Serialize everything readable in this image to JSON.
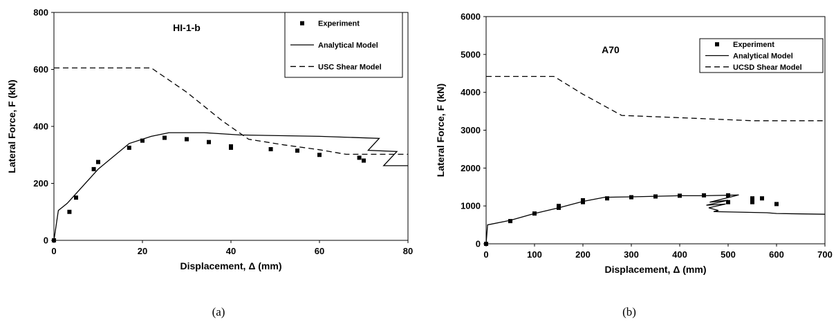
{
  "chart_data": [
    {
      "type": "line",
      "panel_caption": "(a)",
      "title": "HI-1-b",
      "xlabel": "Displacement, Δ (mm)",
      "ylabel": "Lateral Force, F (kN)",
      "xlim": [
        0,
        80
      ],
      "ylim": [
        0,
        800
      ],
      "xticks": [
        "0",
        "20",
        "40",
        "60",
        "80"
      ],
      "yticks": [
        "0",
        "200",
        "400",
        "600",
        "800"
      ],
      "grid": false,
      "legend_position": "top-right",
      "series": [
        {
          "name": "Experiment",
          "style": "markers",
          "points": [
            [
              0,
              0
            ],
            [
              3.5,
              100
            ],
            [
              5,
              150
            ],
            [
              9,
              250
            ],
            [
              10,
              275
            ],
            [
              17,
              325
            ],
            [
              20,
              350
            ],
            [
              25,
              360
            ],
            [
              30,
              355
            ],
            [
              35,
              345
            ],
            [
              40,
              330
            ],
            [
              40,
              325
            ],
            [
              49,
              320
            ],
            [
              55,
              315
            ],
            [
              60,
              300
            ],
            [
              69,
              290
            ],
            [
              70,
              280
            ]
          ]
        },
        {
          "name": "Analytical Model",
          "style": "solid",
          "points": [
            [
              0,
              0
            ],
            [
              1,
              105
            ],
            [
              3,
              130
            ],
            [
              10,
              250
            ],
            [
              17,
              340
            ],
            [
              22,
              365
            ],
            [
              26,
              378
            ],
            [
              34,
              378
            ],
            [
              42,
              370
            ],
            [
              60,
              365
            ],
            [
              73.5,
              358
            ],
            [
              71,
              316
            ],
            [
              77.5,
              312
            ],
            [
              74.5,
              262
            ],
            [
              80,
              262
            ]
          ]
        },
        {
          "name": "USC Shear Model",
          "style": "dashed",
          "points": [
            [
              0,
              605
            ],
            [
              22,
              605
            ],
            [
              30,
              520
            ],
            [
              38,
              420
            ],
            [
              44,
              355
            ],
            [
              52,
              335
            ],
            [
              60,
              318
            ],
            [
              66,
              302
            ],
            [
              80,
              302
            ]
          ]
        }
      ]
    },
    {
      "type": "line",
      "panel_caption": "(b)",
      "title": "A70",
      "xlabel": "Displacement, Δ (mm)",
      "ylabel": "Lateral Force, F (kN)",
      "xlim": [
        0,
        700
      ],
      "ylim": [
        0,
        6000
      ],
      "xticks": [
        "0",
        "100",
        "200",
        "300",
        "400",
        "500",
        "600",
        "700"
      ],
      "yticks": [
        "0",
        "1000",
        "2000",
        "3000",
        "4000",
        "5000",
        "6000"
      ],
      "grid": false,
      "legend_position": "top-right",
      "series": [
        {
          "name": "Experiment",
          "style": "markers",
          "points": [
            [
              0,
              0
            ],
            [
              50,
              600
            ],
            [
              100,
              800
            ],
            [
              150,
              950
            ],
            [
              150,
              1000
            ],
            [
              200,
              1100
            ],
            [
              200,
              1150
            ],
            [
              250,
              1200
            ],
            [
              300,
              1230
            ],
            [
              350,
              1250
            ],
            [
              400,
              1270
            ],
            [
              450,
              1280
            ],
            [
              500,
              1280
            ],
            [
              500,
              1100
            ],
            [
              550,
              1200
            ],
            [
              550,
              1100
            ],
            [
              570,
              1200
            ],
            [
              600,
              1050
            ]
          ]
        },
        {
          "name": "Analytical Model",
          "style": "solid",
          "points": [
            [
              0,
              0
            ],
            [
              3,
              500
            ],
            [
              50,
              620
            ],
            [
              100,
              800
            ],
            [
              150,
              950
            ],
            [
              200,
              1120
            ],
            [
              245,
              1230
            ],
            [
              300,
              1240
            ],
            [
              400,
              1270
            ],
            [
              450,
              1270
            ],
            [
              522,
              1290
            ],
            [
              462,
              1100
            ],
            [
              500,
              1150
            ],
            [
              455,
              1020
            ],
            [
              495,
              1050
            ],
            [
              460,
              950
            ],
            [
              480,
              880
            ],
            [
              470,
              850
            ],
            [
              580,
              820
            ],
            [
              600,
              800
            ],
            [
              700,
              780
            ]
          ]
        },
        {
          "name": "UCSD Shear Model",
          "style": "dashed",
          "points": [
            [
              0,
              4420
            ],
            [
              140,
              4420
            ],
            [
              200,
              3950
            ],
            [
              280,
              3390
            ],
            [
              400,
              3330
            ],
            [
              550,
              3250
            ],
            [
              700,
              3250
            ]
          ]
        }
      ]
    }
  ]
}
